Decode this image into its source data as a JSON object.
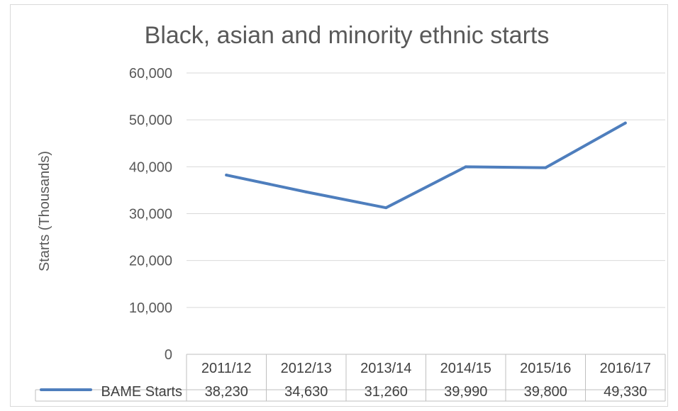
{
  "chart_data": {
    "type": "line",
    "title": "Black, asian and minority ethnic starts",
    "ylabel": "Starts (Thousands)",
    "xlabel": "",
    "categories": [
      "2011/12",
      "2012/13",
      "2013/14",
      "2014/15",
      "2015/16",
      "2016/17"
    ],
    "yticks": [
      "0",
      "10,000",
      "20,000",
      "30,000",
      "40,000",
      "50,000",
      "60,000"
    ],
    "ylim": [
      0,
      60000
    ],
    "grid": true,
    "legend": "data-table",
    "series": [
      {
        "name": "BAME Starts",
        "color": "#4e7ebd",
        "values": [
          38230,
          34630,
          31260,
          39990,
          39800,
          49330
        ],
        "labels": [
          "38,230",
          "34,630",
          "31,260",
          "39,990",
          "39,800",
          "49,330"
        ]
      }
    ]
  }
}
